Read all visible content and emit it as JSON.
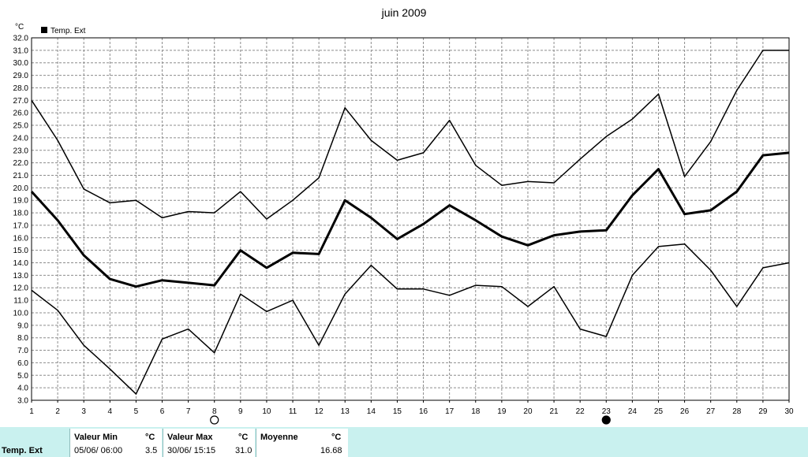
{
  "chart_data": {
    "type": "line",
    "title": "juin 2009",
    "ylabel": "°C",
    "legend": "Temp. Ext",
    "legend_position": "top-left",
    "grid": true,
    "ylim": [
      3.0,
      32.0
    ],
    "yticks": [
      "3.0",
      "4.0",
      "5.0",
      "6.0",
      "7.0",
      "8.0",
      "9.0",
      "10.0",
      "11.0",
      "12.0",
      "13.0",
      "14.0",
      "15.0",
      "16.0",
      "17.0",
      "18.0",
      "19.0",
      "20.0",
      "21.0",
      "22.0",
      "23.0",
      "24.0",
      "25.0",
      "26.0",
      "27.0",
      "28.0",
      "29.0",
      "30.0",
      "31.0",
      "32.0"
    ],
    "x": [
      1,
      2,
      3,
      4,
      5,
      6,
      7,
      8,
      9,
      10,
      11,
      12,
      13,
      14,
      15,
      16,
      17,
      18,
      19,
      20,
      21,
      22,
      23,
      24,
      25,
      26,
      27,
      28,
      29,
      30
    ],
    "series": [
      {
        "role": "max",
        "values": [
          27.0,
          23.8,
          19.9,
          18.8,
          19.0,
          17.6,
          18.1,
          18.0,
          19.7,
          17.5,
          19.0,
          20.8,
          26.4,
          23.8,
          22.2,
          22.8,
          25.4,
          21.8,
          20.2,
          20.5,
          20.4,
          22.3,
          24.1,
          25.5,
          27.5,
          20.9,
          23.7,
          27.8,
          31.0,
          31.0
        ]
      },
      {
        "role": "mean",
        "values": [
          19.7,
          17.4,
          14.6,
          12.7,
          12.1,
          12.6,
          12.4,
          12.2,
          15.0,
          13.6,
          14.8,
          14.7,
          19.0,
          17.6,
          15.9,
          17.1,
          18.6,
          17.4,
          16.1,
          15.4,
          16.2,
          16.5,
          16.6,
          19.4,
          21.5,
          17.9,
          18.2,
          19.7,
          22.6,
          22.8
        ]
      },
      {
        "role": "min",
        "values": [
          11.8,
          10.2,
          7.4,
          5.5,
          3.5,
          7.9,
          8.7,
          6.8,
          11.5,
          10.1,
          11.0,
          7.4,
          11.5,
          13.8,
          11.9,
          11.9,
          11.4,
          12.2,
          12.1,
          10.5,
          12.1,
          8.7,
          8.1,
          13.0,
          15.3,
          15.5,
          13.4,
          10.5,
          13.6,
          14.0
        ]
      }
    ],
    "markers": [
      {
        "day": 8,
        "symbol": "○"
      },
      {
        "day": 23,
        "symbol": "●"
      }
    ]
  },
  "stats": {
    "row_label": "Temp. Ext",
    "min_header": "Valeur Min",
    "max_header": "Valeur Max",
    "mean_header": "Moyenne",
    "unit": "°C",
    "min_date": "05/06/  06:00",
    "min_value": "3.5",
    "max_date": "30/06/  15:15",
    "max_value": "31.0",
    "mean_value": "16.68"
  }
}
